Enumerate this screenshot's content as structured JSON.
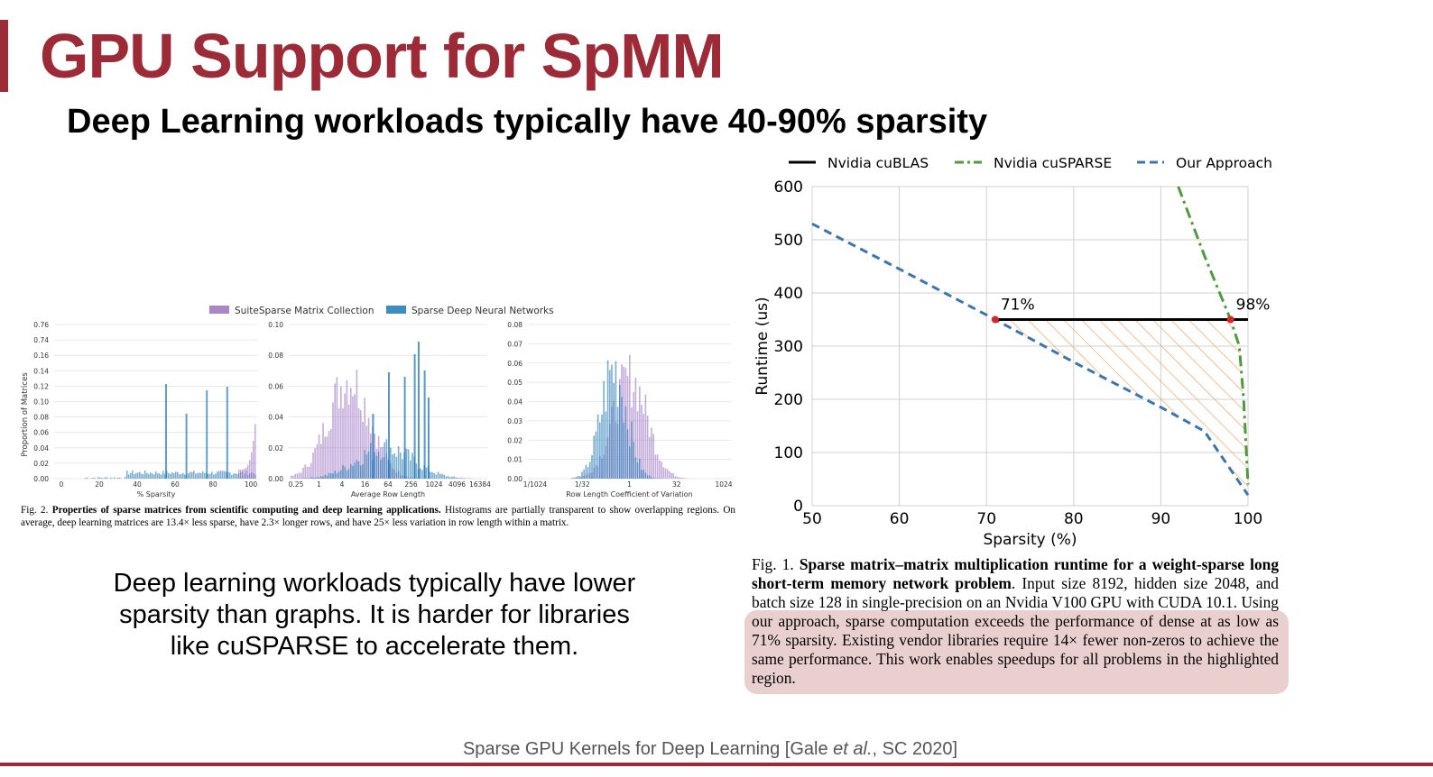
{
  "slide": {
    "title": "GPU Support for SpMM",
    "subtitle": "Deep Learning workloads typically have 40-90% sparsity",
    "body_lines": [
      "Deep learning workloads typically have lower",
      "sparsity than graphs. It is harder for libraries",
      "like cuSPARSE to accelerate them."
    ],
    "citation_prefix": "Sparse GPU Kernels for Deep Learning [Gale ",
    "citation_italic": "et al.",
    "citation_suffix": ", SC 2020]",
    "accent_color": "#9c2a37"
  },
  "fig1_caption": {
    "prefix": "Fig. 1.",
    "bold": "Sparse matrix–matrix multiplication runtime for a weight-sparse long short-term memory network problem",
    "plain": ". Input size 8192, hidden size 2048, and batch size 128 in single-precision on an Nvidia V100 GPU with CUDA 10.1. Using our approach, sparse computation exceeds the performance of dense at as low as 71% sparsity. Existing vendor libraries require 14× fewer non-zeros to achieve the same performance. This work enables speedups for all problems in the highlighted region.",
    "highlight_color": "#e9cfce"
  },
  "fig2_caption": {
    "prefix": "Fig. 2.",
    "bold": "Properties of sparse matrices from scientific computing and deep learning applications.",
    "plain": " Histograms are partially transparent to show overlapping regions. On average, deep learning matrices are 13.4× less sparse, have 2.3× longer rows, and have 25× less variation in row length within a matrix."
  },
  "chart_data": [
    {
      "type": "line",
      "xlabel": "Sparsity (%)",
      "ylabel": "Runtime (us)",
      "xlim": [
        50,
        100
      ],
      "ylim": [
        0,
        600
      ],
      "xticks": [
        "50",
        "60",
        "70",
        "80",
        "90",
        "100"
      ],
      "yticks": [
        "0",
        "100",
        "200",
        "300",
        "400",
        "500",
        "600"
      ],
      "grid": true,
      "legend_position": "top",
      "series": [
        {
          "name": "Nvidia cuBLAS",
          "color": "#000000",
          "style": "solid",
          "x": [
            71,
            100
          ],
          "y": [
            350,
            350
          ]
        },
        {
          "name": "Nvidia cuSPARSE",
          "color": "#4e9a3c",
          "style": "dashdot",
          "x": [
            92,
            95,
            98,
            99,
            99.5,
            100
          ],
          "y": [
            600,
            470,
            350,
            300,
            200,
            40
          ]
        },
        {
          "name": "Our Approach",
          "color": "#3b75af",
          "style": "dashed",
          "x": [
            50,
            60,
            71,
            80,
            90,
            95,
            100
          ],
          "y": [
            530,
            445,
            350,
            270,
            185,
            140,
            20
          ]
        }
      ],
      "annotations": [
        {
          "text": "71%",
          "x": 71,
          "y": 350
        },
        {
          "text": "98%",
          "x": 98,
          "y": 350
        }
      ],
      "highlight_region_color": "#f4a460"
    },
    {
      "type": "bar",
      "title": "",
      "legend": [
        "SuiteSparse Matrix Collection",
        "Sparse Deep Neural Networks"
      ],
      "colors": [
        "#9467bd",
        "#1f77b4"
      ],
      "ylabel": "Proportion of Matrices",
      "panels": [
        {
          "xlabel": "% Sparsity",
          "xticks": [
            "0",
            "20",
            "40",
            "60",
            "80",
            "100"
          ],
          "yticks": [
            "0.00",
            "0.02",
            "0.04",
            "0.06",
            "0.08",
            "0.10",
            "0.12",
            "0.14",
            "0.16",
            "0.74",
            "0.76"
          ]
        },
        {
          "xlabel": "Average Row Length",
          "xticks": [
            "0.25",
            "1",
            "4",
            "16",
            "64",
            "256",
            "1024",
            "4096",
            "16384"
          ],
          "yticks": [
            "0.00",
            "0.02",
            "0.04",
            "0.06",
            "0.08",
            "0.10"
          ]
        },
        {
          "xlabel": "Row Length Coefficient of Variation",
          "xticks": [
            "1/1024",
            "1/32",
            "1",
            "32",
            "1024"
          ],
          "yticks": [
            "0.00",
            "0.01",
            "0.02",
            "0.03",
            "0.04",
            "0.05",
            "0.06",
            "0.07",
            "0.08"
          ]
        }
      ]
    }
  ]
}
